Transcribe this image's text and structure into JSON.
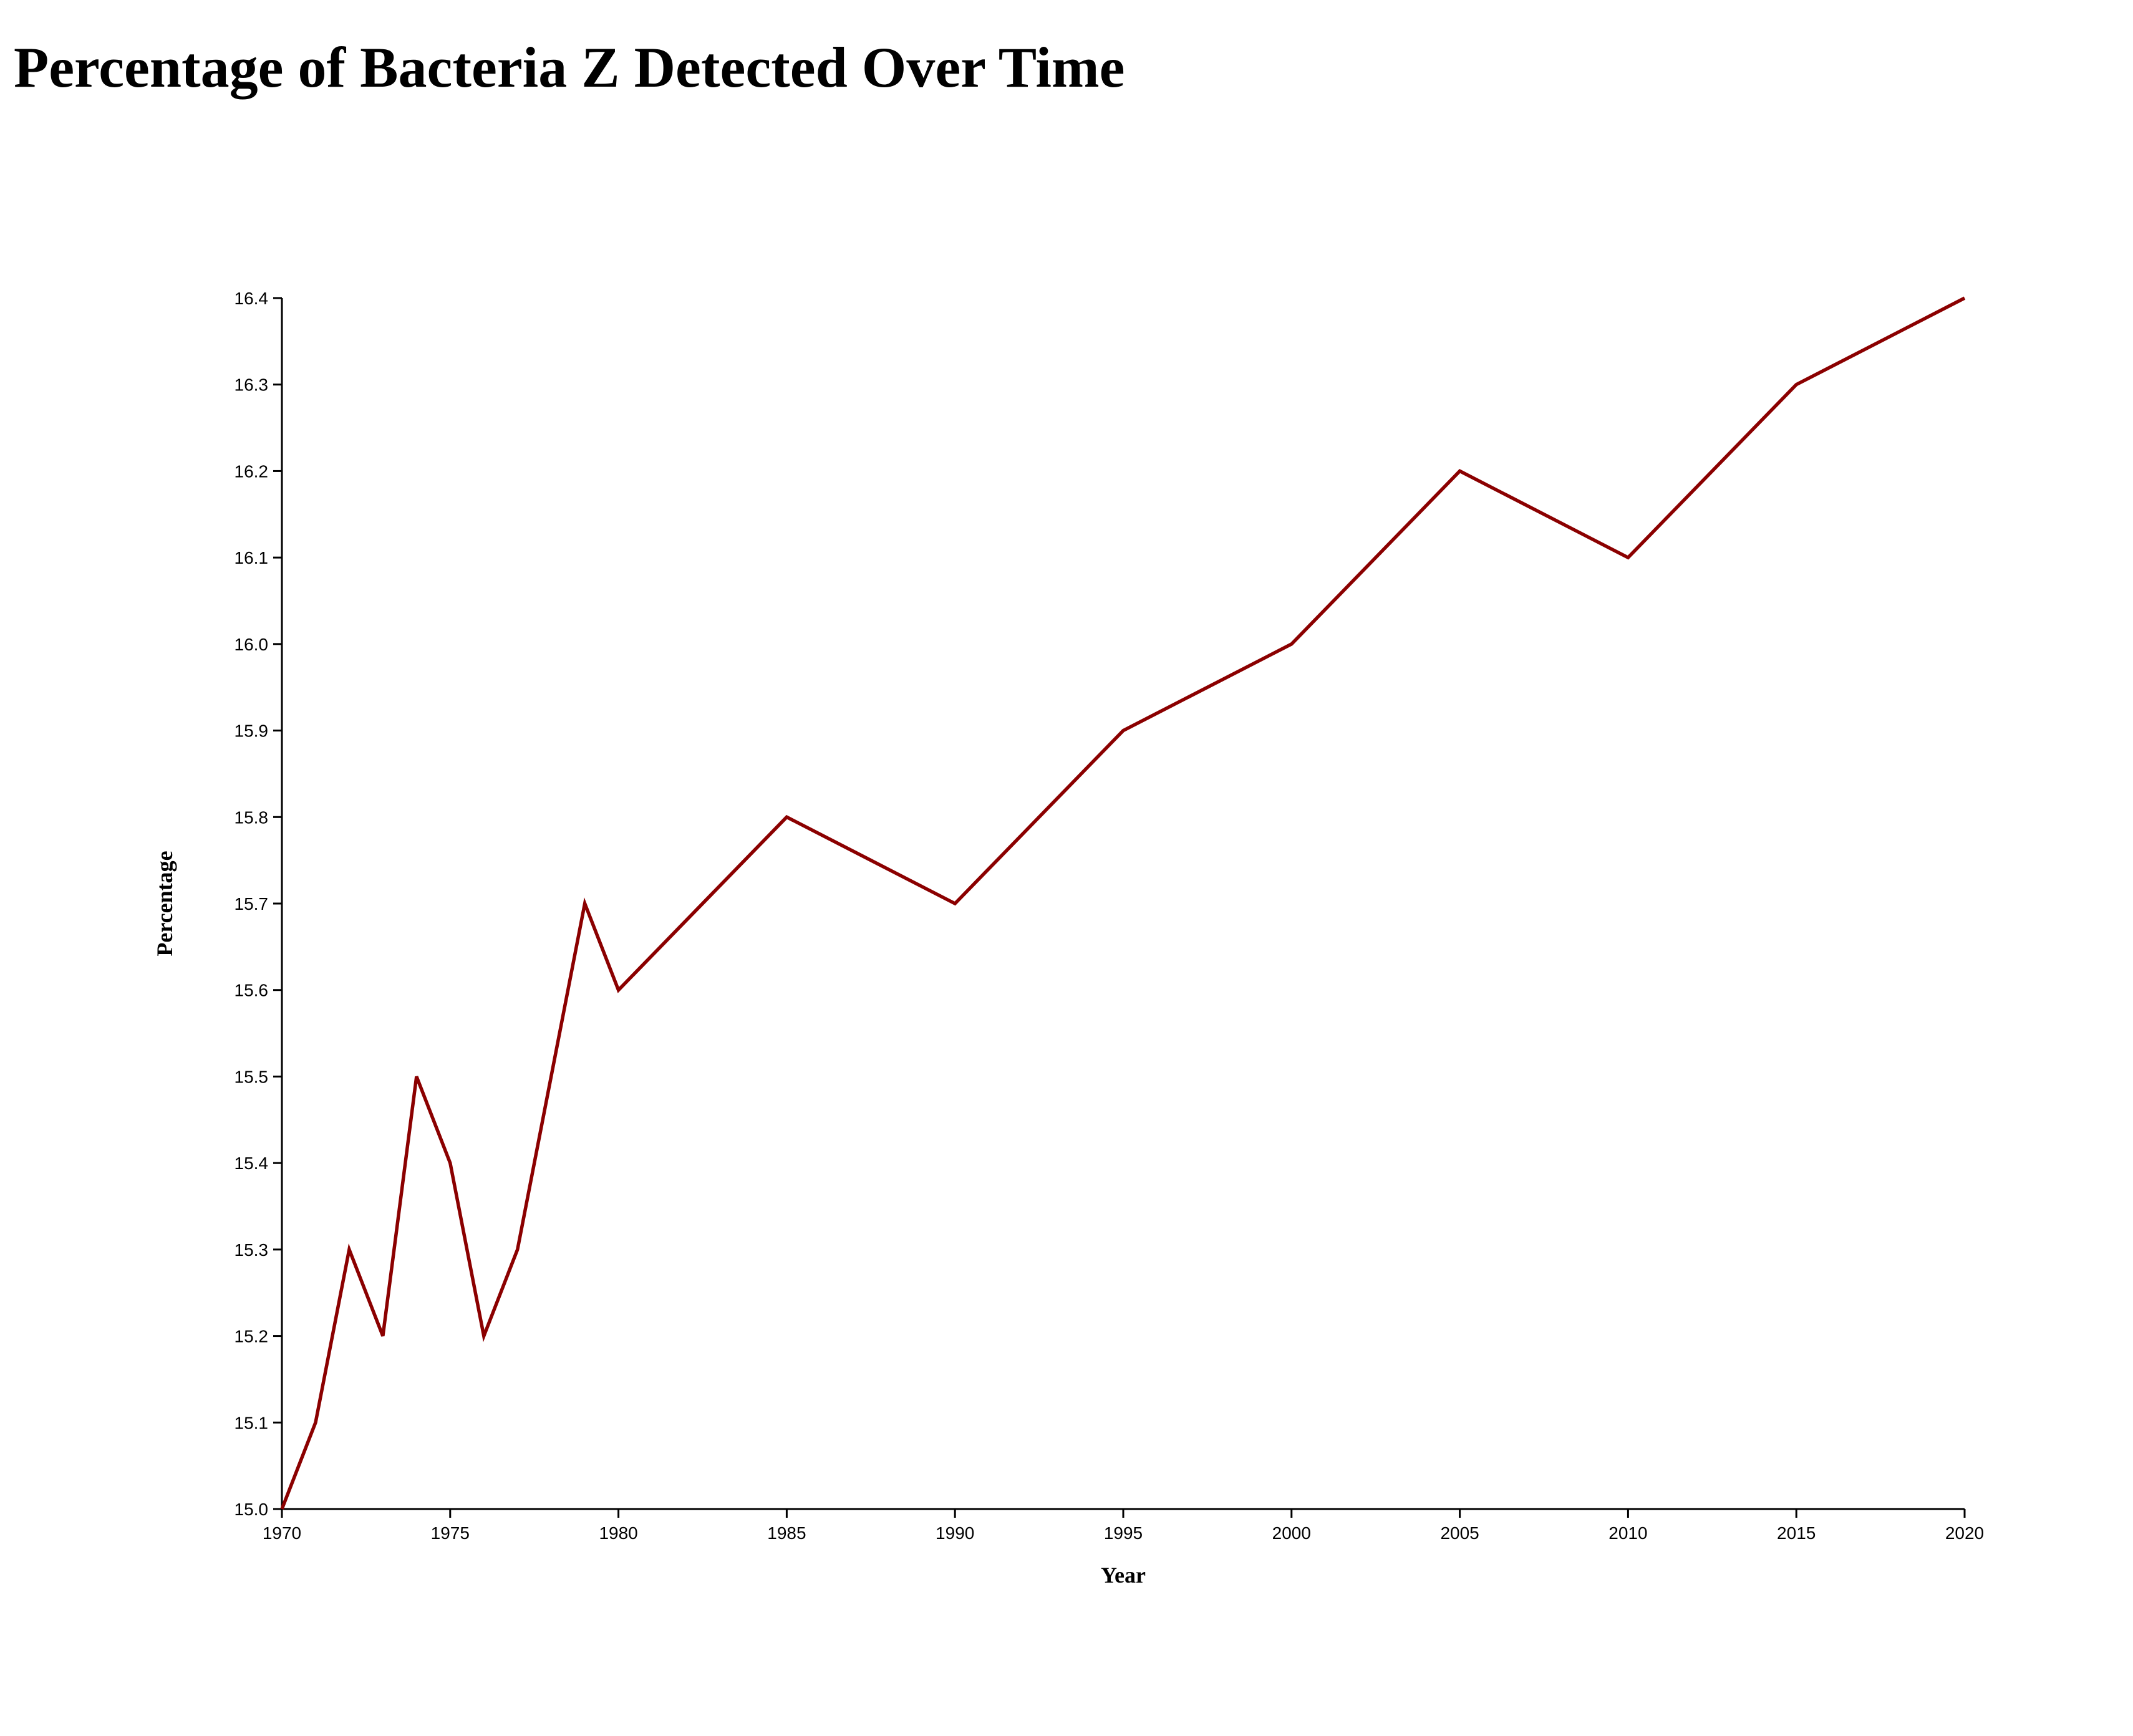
{
  "page": {
    "title": "Percentage of Bacteria Z Detected Over Time"
  },
  "chart_data": {
    "type": "line",
    "title": "Percentage of Bacteria Z Detected Over Time",
    "xlabel": "Year",
    "ylabel": "Percentage",
    "x": [
      1970,
      1971,
      1972,
      1973,
      1974,
      1975,
      1976,
      1977,
      1978,
      1979,
      1980,
      1985,
      1990,
      1995,
      2000,
      2005,
      2010,
      2015,
      2020
    ],
    "series": [
      {
        "values": [
          15.0,
          15.1,
          15.3,
          15.2,
          15.5,
          15.4,
          15.2,
          15.3,
          15.5,
          15.7,
          15.6,
          15.8,
          15.7,
          15.9,
          16.0,
          16.2,
          16.1,
          16.3,
          16.4
        ],
        "color": "#8b0000"
      }
    ],
    "xlim": [
      1970,
      2020
    ],
    "ylim": [
      15.0,
      16.4
    ],
    "xticks": [
      "1970",
      "1975",
      "1980",
      "1985",
      "1990",
      "1995",
      "2000",
      "2005",
      "2010",
      "2015",
      "2020"
    ],
    "yticks": [
      "15.0",
      "15.1",
      "15.2",
      "15.3",
      "15.4",
      "15.5",
      "15.6",
      "15.7",
      "15.8",
      "15.9",
      "16.0",
      "16.1",
      "16.2",
      "16.3",
      "16.4"
    ],
    "grid": false,
    "legend": "none"
  }
}
